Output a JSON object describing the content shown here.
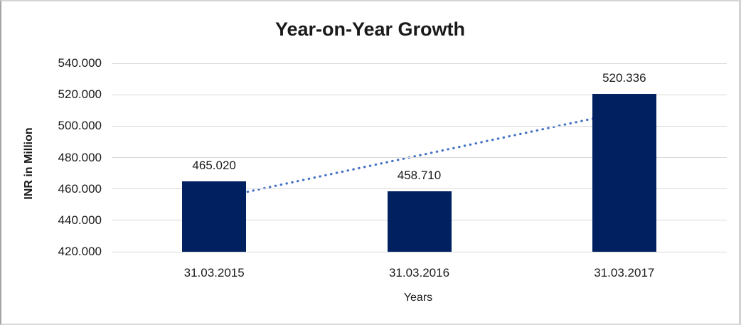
{
  "chart_data": {
    "type": "bar",
    "title": "Year-on-Year Growth",
    "xlabel": "Years",
    "ylabel": "INR in Million",
    "categories": [
      "31.03.2015",
      "31.03.2016",
      "31.03.2017"
    ],
    "values": [
      465020,
      458710,
      520336
    ],
    "data_labels": [
      "465.020",
      "458.710",
      "520.336"
    ],
    "ylim": [
      420000,
      540000
    ],
    "ytick_step": 20000,
    "ytick_labels": [
      "420.000",
      "440.000",
      "460.000",
      "480.000",
      "500.000",
      "520.000",
      "540.000"
    ],
    "grid": "horizontal",
    "legend_position": "none",
    "bar_color": "#002060",
    "gridline_color": "#d9d9d9",
    "trendline": {
      "type": "linear",
      "style": "dotted",
      "color": "#4472c4"
    }
  }
}
